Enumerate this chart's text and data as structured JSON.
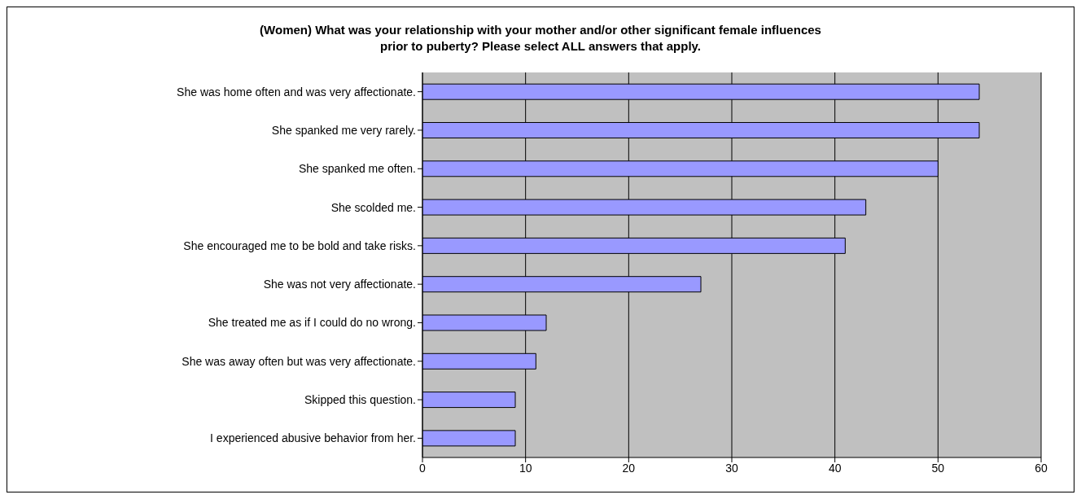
{
  "chart_data": {
    "type": "bar",
    "orientation": "horizontal",
    "title": "(Women) What was your relationship with your mother and/or other significant female influences prior to puberty? Please select ALL answers that apply.",
    "categories": [
      "She was home often and was very affectionate.",
      "She spanked me very rarely.",
      "She spanked me often.",
      "She scolded me.",
      "She encouraged me to be bold and take risks.",
      "She was not very affectionate.",
      "She treated me as if I could do no wrong.",
      "She was away often but was very affectionate.",
      "Skipped this question.",
      "I experienced abusive behavior from her."
    ],
    "values": [
      54,
      54,
      50,
      43,
      41,
      27,
      12,
      11,
      9,
      9
    ],
    "color": "#9999ff",
    "xlim": [
      0,
      60
    ],
    "xticks": [
      0,
      10,
      20,
      30,
      40,
      50,
      60
    ],
    "grid": "x"
  }
}
